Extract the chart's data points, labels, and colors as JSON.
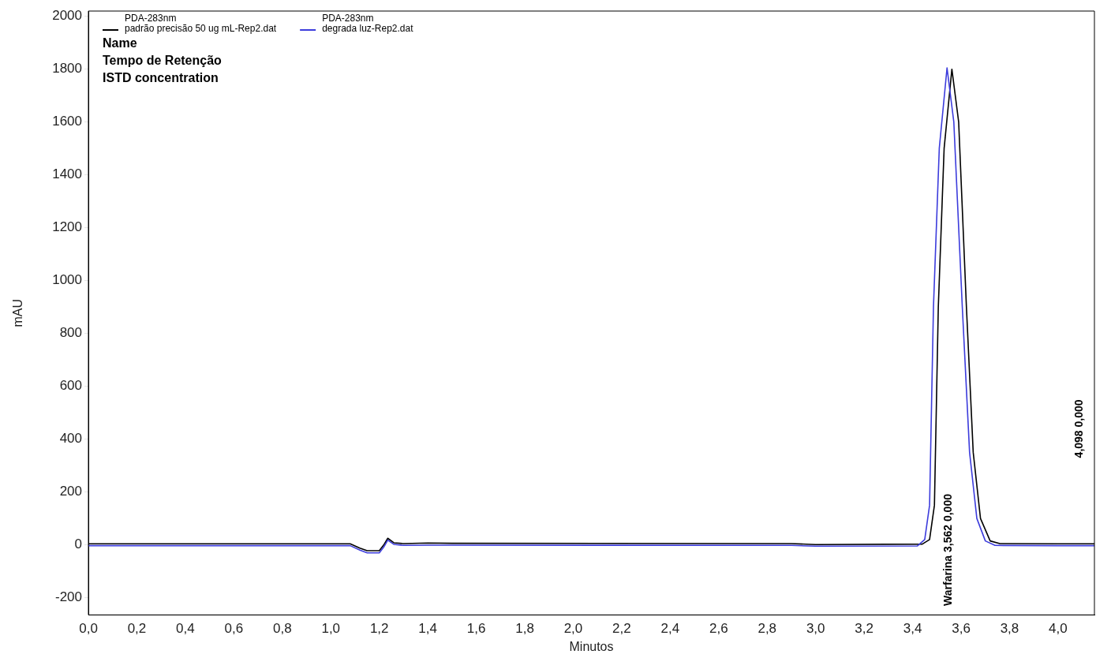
{
  "chart_data": {
    "type": "line",
    "xlabel": "Minutos",
    "ylabel": "mAU",
    "legend": "top left",
    "grid": false,
    "marker": "none",
    "line_style": "solid",
    "xlim": [
      0,
      4.15
    ],
    "ylim": [
      -265,
      2020
    ],
    "xticks": [
      {
        "value": 0,
        "label": "0,0"
      },
      {
        "value": 0.2,
        "label": "0,2"
      },
      {
        "value": 0.4,
        "label": "0,4"
      },
      {
        "value": 0.6,
        "label": "0,6"
      },
      {
        "value": 0.8,
        "label": "0,8"
      },
      {
        "value": 1,
        "label": "1,0"
      },
      {
        "value": 1.2,
        "label": "1,2"
      },
      {
        "value": 1.4,
        "label": "1,4"
      },
      {
        "value": 1.6,
        "label": "1,6"
      },
      {
        "value": 1.8,
        "label": "1,8"
      },
      {
        "value": 2,
        "label": "2,0"
      },
      {
        "value": 2.2,
        "label": "2,2"
      },
      {
        "value": 2.4,
        "label": "2,4"
      },
      {
        "value": 2.6,
        "label": "2,6"
      },
      {
        "value": 2.8,
        "label": "2,8"
      },
      {
        "value": 3,
        "label": "3,0"
      },
      {
        "value": 3.2,
        "label": "3,2"
      },
      {
        "value": 3.4,
        "label": "3,4"
      },
      {
        "value": 3.6,
        "label": "3,6"
      },
      {
        "value": 3.8,
        "label": "3,8"
      },
      {
        "value": 4,
        "label": "4,0"
      }
    ],
    "yticks": [
      -200,
      0,
      200,
      400,
      600,
      800,
      1000,
      1200,
      1400,
      1600,
      1800,
      2000
    ],
    "annotations": [
      "Name",
      "Tempo de Retenção",
      "ISTD concentration",
      "Warfarina 3,562 0,000",
      "4,098 0,000"
    ],
    "series": [
      {
        "name": "PDA-283nm\npadrão precisão 50 ug mL-Rep2.dat",
        "color": "#000000",
        "x": [
          0,
          1.08,
          1.12,
          1.15,
          1.2,
          1.22,
          1.235,
          1.26,
          1.3,
          1.4,
          1.5,
          2.9,
          3.0,
          3.44,
          3.47,
          3.49,
          3.506,
          3.53,
          3.562,
          3.59,
          3.622,
          3.65,
          3.68,
          3.72,
          3.76,
          4.0,
          4.15
        ],
        "values": [
          4,
          4,
          -12,
          -22,
          -22,
          2,
          25,
          8,
          5,
          7,
          6,
          5,
          1,
          3,
          20,
          150,
          900,
          1500,
          1800,
          1600,
          900,
          350,
          100,
          15,
          5,
          4,
          4
        ]
      },
      {
        "name": "PDA-283nm\ndegrada luz-Rep2.dat",
        "color": "#3c3cdc",
        "x": [
          0,
          1.08,
          1.12,
          1.15,
          1.2,
          1.22,
          1.235,
          1.26,
          1.3,
          1.4,
          1.5,
          2.9,
          3.0,
          3.42,
          3.45,
          3.47,
          3.486,
          3.51,
          3.542,
          3.57,
          3.605,
          3.635,
          3.665,
          3.7,
          3.74,
          4.0,
          4.15
        ],
        "values": [
          -3,
          -3,
          -20,
          -30,
          -30,
          -6,
          18,
          2,
          -2,
          -1,
          -1,
          -2,
          -5,
          -4,
          20,
          150,
          900,
          1500,
          1805,
          1600,
          900,
          350,
          100,
          15,
          -2,
          -3,
          -3
        ]
      }
    ]
  }
}
